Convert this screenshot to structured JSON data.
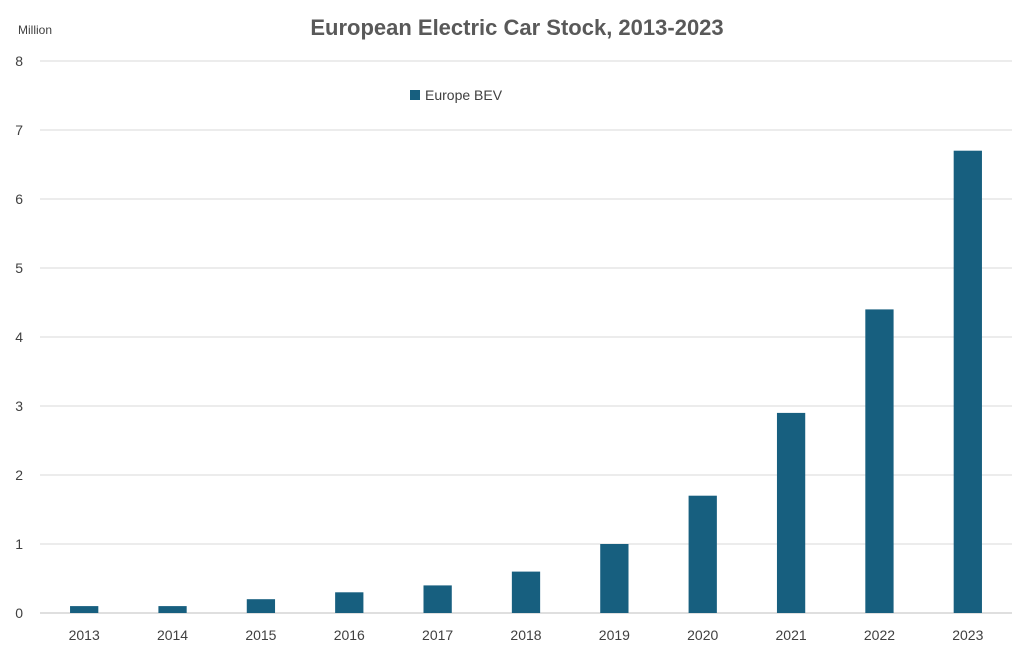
{
  "chart_data": {
    "type": "bar",
    "title": "European Electric Car Stock, 2013-2023",
    "ylabel": "Million",
    "xlabel": "",
    "categories": [
      "2013",
      "2014",
      "2015",
      "2016",
      "2017",
      "2018",
      "2019",
      "2020",
      "2021",
      "2022",
      "2023"
    ],
    "series": [
      {
        "name": "Europe BEV",
        "color": "#175f7f",
        "values": [
          0.1,
          0.1,
          0.2,
          0.3,
          0.4,
          0.6,
          1.0,
          1.7,
          2.9,
          4.4,
          6.7
        ]
      }
    ],
    "ylim": [
      0,
      8
    ],
    "yticks": [
      "0",
      "1",
      "2",
      "3",
      "4",
      "5",
      "6",
      "7",
      "8"
    ],
    "grid": true,
    "legend_position": "top"
  }
}
